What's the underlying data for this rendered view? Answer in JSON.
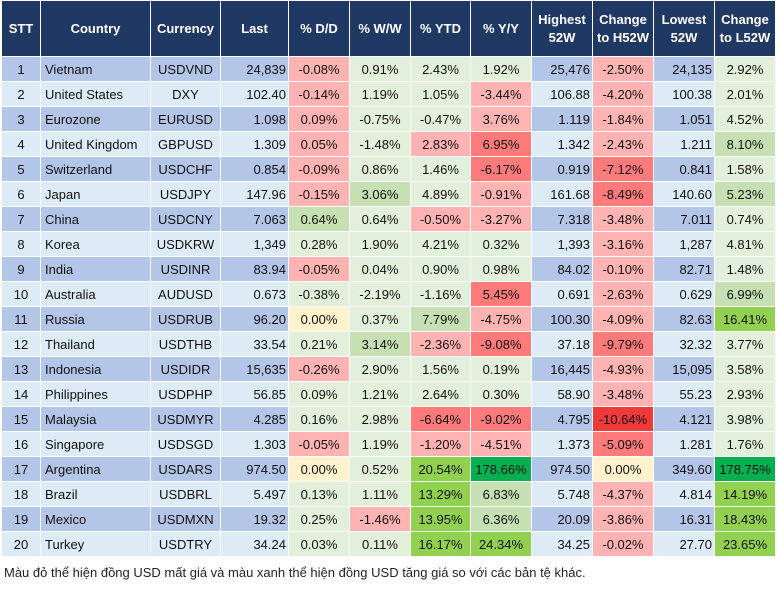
{
  "headers": [
    "STT",
    "Country",
    "Currency",
    "Last",
    "% D/D",
    "% W/W",
    "% YTD",
    "% Y/Y",
    "Highest 52W",
    "Change to H52W",
    "Lowest 52W",
    "Change to L52W"
  ],
  "rows": [
    {
      "stt": "1",
      "country": "Vietnam",
      "currency": "USDVND",
      "last": "24,839",
      "dd": "-0.08%",
      "ww": "0.91%",
      "ytd": "2.43%",
      "yy": "1.92%",
      "high": "25,476",
      "chh": "-2.50%",
      "low": "24,135",
      "chl": "2.92%",
      "colors": [
        "lr",
        "lg",
        "lg",
        "lg",
        "lr",
        "lg"
      ]
    },
    {
      "stt": "2",
      "country": "United States",
      "currency": "DXY",
      "last": "102.40",
      "dd": "-0.14%",
      "ww": "1.19%",
      "ytd": "1.05%",
      "yy": "-3.44%",
      "high": "106.88",
      "chh": "-4.20%",
      "low": "100.38",
      "chl": "2.01%",
      "colors": [
        "lr",
        "lg",
        "lg",
        "lr",
        "lr",
        "lg"
      ]
    },
    {
      "stt": "3",
      "country": "Eurozone",
      "currency": "EURUSD",
      "last": "1.098",
      "dd": "0.09%",
      "ww": "-0.75%",
      "ytd": "-0.47%",
      "yy": "3.76%",
      "high": "1.119",
      "chh": "-1.84%",
      "low": "1.051",
      "chl": "4.52%",
      "colors": [
        "lr",
        "lg",
        "lg",
        "lr",
        "lr",
        "lg"
      ]
    },
    {
      "stt": "4",
      "country": "United Kingdom",
      "currency": "GBPUSD",
      "last": "1.309",
      "dd": "0.05%",
      "ww": "-1.48%",
      "ytd": "2.83%",
      "yy": "6.95%",
      "high": "1.342",
      "chh": "-2.43%",
      "low": "1.211",
      "chl": "8.10%",
      "colors": [
        "lr",
        "lg",
        "lr",
        "rd",
        "lr",
        "g"
      ]
    },
    {
      "stt": "5",
      "country": "Switzerland",
      "currency": "USDCHF",
      "last": "0.854",
      "dd": "-0.09%",
      "ww": "0.86%",
      "ytd": "1.46%",
      "yy": "-6.17%",
      "high": "0.919",
      "chh": "-7.12%",
      "low": "0.841",
      "chl": "1.58%",
      "colors": [
        "lr",
        "lg",
        "lg",
        "rd",
        "rd",
        "lg"
      ]
    },
    {
      "stt": "6",
      "country": "Japan",
      "currency": "USDJPY",
      "last": "147.96",
      "dd": "-0.15%",
      "ww": "3.06%",
      "ytd": "4.89%",
      "yy": "-0.91%",
      "high": "161.68",
      "chh": "-8.49%",
      "low": "140.60",
      "chl": "5.23%",
      "colors": [
        "lr",
        "g",
        "lg",
        "lr",
        "rd",
        "g"
      ]
    },
    {
      "stt": "7",
      "country": "China",
      "currency": "USDCNY",
      "last": "7.063",
      "dd": "0.64%",
      "ww": "0.64%",
      "ytd": "-0.50%",
      "yy": "-3.27%",
      "high": "7.318",
      "chh": "-3.48%",
      "low": "7.011",
      "chl": "0.74%",
      "colors": [
        "g",
        "lg",
        "lr",
        "lr",
        "lr",
        "lg"
      ]
    },
    {
      "stt": "8",
      "country": "Korea",
      "currency": "USDKRW",
      "last": "1,349",
      "dd": "0.28%",
      "ww": "1.90%",
      "ytd": "4.21%",
      "yy": "0.32%",
      "high": "1,393",
      "chh": "-3.16%",
      "low": "1,287",
      "chl": "4.81%",
      "colors": [
        "lg",
        "lg",
        "lg",
        "lg",
        "lr",
        "lg"
      ]
    },
    {
      "stt": "9",
      "country": "India",
      "currency": "USDINR",
      "last": "83.94",
      "dd": "-0.05%",
      "ww": "0.04%",
      "ytd": "0.90%",
      "yy": "0.98%",
      "high": "84.02",
      "chh": "-0.10%",
      "low": "82.71",
      "chl": "1.48%",
      "colors": [
        "lr",
        "lg",
        "lg",
        "lg",
        "lr",
        "lg"
      ]
    },
    {
      "stt": "10",
      "country": "Australia",
      "currency": "AUDUSD",
      "last": "0.673",
      "dd": "-0.38%",
      "ww": "-2.19%",
      "ytd": "-1.16%",
      "yy": "5.45%",
      "high": "0.691",
      "chh": "-2.63%",
      "low": "0.629",
      "chl": "6.99%",
      "colors": [
        "lg",
        "lg",
        "lg",
        "rd",
        "lr",
        "g"
      ]
    },
    {
      "stt": "11",
      "country": "Russia",
      "currency": "USDRUB",
      "last": "96.20",
      "dd": "0.00%",
      "ww": "0.37%",
      "ytd": "7.79%",
      "yy": "-4.75%",
      "high": "100.30",
      "chh": "-4.09%",
      "low": "82.63",
      "chl": "16.41%",
      "colors": [
        "y",
        "lg",
        "g",
        "lr",
        "lr",
        "gg"
      ]
    },
    {
      "stt": "12",
      "country": "Thailand",
      "currency": "USDTHB",
      "last": "33.54",
      "dd": "0.21%",
      "ww": "3.14%",
      "ytd": "-2.36%",
      "yy": "-9.08%",
      "high": "37.18",
      "chh": "-9.79%",
      "low": "32.32",
      "chl": "3.77%",
      "colors": [
        "lg",
        "g",
        "lr",
        "rd",
        "rd",
        "lg"
      ]
    },
    {
      "stt": "13",
      "country": "Indonesia",
      "currency": "USDIDR",
      "last": "15,635",
      "dd": "-0.26%",
      "ww": "2.90%",
      "ytd": "1.56%",
      "yy": "0.19%",
      "high": "16,445",
      "chh": "-4.93%",
      "low": "15,095",
      "chl": "3.58%",
      "colors": [
        "lr",
        "lg",
        "lg",
        "lg",
        "lr",
        "lg"
      ]
    },
    {
      "stt": "14",
      "country": "Philippines",
      "currency": "USDPHP",
      "last": "56.85",
      "dd": "0.09%",
      "ww": "1.21%",
      "ytd": "2.64%",
      "yy": "0.30%",
      "high": "58.90",
      "chh": "-3.48%",
      "low": "55.23",
      "chl": "2.93%",
      "colors": [
        "lg",
        "lg",
        "lg",
        "lg",
        "lr",
        "lg"
      ]
    },
    {
      "stt": "15",
      "country": "Malaysia",
      "currency": "USDMYR",
      "last": "4.285",
      "dd": "0.16%",
      "ww": "2.98%",
      "ytd": "-6.64%",
      "yy": "-9.02%",
      "high": "4.795",
      "chh": "-10.64%",
      "low": "4.121",
      "chl": "3.98%",
      "colors": [
        "lg",
        "lg",
        "rd",
        "rd",
        "rr",
        "lg"
      ]
    },
    {
      "stt": "16",
      "country": "Singapore",
      "currency": "USDSGD",
      "last": "1.303",
      "dd": "-0.05%",
      "ww": "1.19%",
      "ytd": "-1.20%",
      "yy": "-4.51%",
      "high": "1.373",
      "chh": "-5.09%",
      "low": "1.281",
      "chl": "1.76%",
      "colors": [
        "lr",
        "lg",
        "lr",
        "lr",
        "rd",
        "lg"
      ]
    },
    {
      "stt": "17",
      "country": "Argentina",
      "currency": "USDARS",
      "last": "974.50",
      "dd": "0.00%",
      "ww": "0.52%",
      "ytd": "20.54%",
      "yy": "178.66%",
      "high": "974.50",
      "chh": "0.00%",
      "low": "349.60",
      "chl": "178.75%",
      "colors": [
        "y",
        "lg",
        "gg",
        "ggg",
        "y",
        "ggg"
      ]
    },
    {
      "stt": "18",
      "country": "Brazil",
      "currency": "USDBRL",
      "last": "5.497",
      "dd": "0.13%",
      "ww": "1.11%",
      "ytd": "13.29%",
      "yy": "6.83%",
      "high": "5.748",
      "chh": "-4.37%",
      "low": "4.814",
      "chl": "14.19%",
      "colors": [
        "lg",
        "lg",
        "gg",
        "g",
        "lr",
        "gg"
      ]
    },
    {
      "stt": "19",
      "country": "Mexico",
      "currency": "USDMXN",
      "last": "19.32",
      "dd": "0.25%",
      "ww": "-1.46%",
      "ytd": "13.95%",
      "yy": "6.36%",
      "high": "20.09",
      "chh": "-3.86%",
      "low": "16.31",
      "chl": "18.43%",
      "colors": [
        "lg",
        "lr",
        "gg",
        "g",
        "lr",
        "gg"
      ]
    },
    {
      "stt": "20",
      "country": "Turkey",
      "currency": "USDTRY",
      "last": "34.24",
      "dd": "0.03%",
      "ww": "0.11%",
      "ytd": "16.17%",
      "yy": "24.34%",
      "high": "34.25",
      "chh": "-0.02%",
      "low": "27.70",
      "chl": "23.65%",
      "colors": [
        "lg",
        "lg",
        "gg",
        "gg",
        "lr",
        "gg"
      ]
    }
  ],
  "footnote": "Màu đỏ thể hiện đồng USD mất giá và màu xanh thể hiện đồng USD tăng giá so với các bản tệ khác."
}
